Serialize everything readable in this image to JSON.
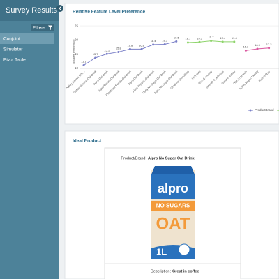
{
  "sidebar": {
    "title": "Survey Results",
    "filters": "Filters",
    "menu": [
      "Conjoint",
      "Simulator",
      "Pivot Table"
    ]
  },
  "chart_data": {
    "type": "line",
    "title": "Relative Feature Level Preference",
    "y_label": "Relative Preference",
    "categories": [
      "Oatley Barista Edit...",
      "Oatley Original Oat Drink",
      "Tesco Oat Drink",
      "Alpro Barista Oat Drink",
      "Plantbrew Barista Oat Drink",
      "Alpro Oat Drink",
      "Alpro Organic Oat Drink",
      "Oatly No Sugar Oat Drink",
      "Alpro No Sugar Oat Drink",
      "Great for Smoothies",
      "Irish oats",
      "Rich & creamy",
      "Smooth & delicious",
      "Great in coffee",
      "High in protein",
      "100% Vegan friendly",
      "Rich in fibre"
    ],
    "series": [
      {
        "name": "ProductBrand",
        "color": "#7b80c8",
        "values": [
          11.1,
          13.7,
          15.1,
          15.8,
          16.8,
          16.8,
          18.4,
          18.5,
          19.5,
          null,
          null,
          null,
          null,
          null,
          null,
          null,
          null
        ]
      },
      {
        "color": "#8fd46c",
        "values": [
          null,
          null,
          null,
          null,
          null,
          null,
          null,
          null,
          null,
          19.1,
          19.3,
          19.7,
          19.4,
          19.4,
          null,
          null,
          null
        ]
      },
      {
        "color": "#d9579f",
        "values": [
          null,
          null,
          null,
          null,
          null,
          null,
          null,
          null,
          null,
          null,
          null,
          null,
          null,
          null,
          16.3,
          16.9,
          17.2
        ]
      }
    ],
    "ylim": [
      10,
      26
    ],
    "yticks": [
      10,
      15,
      20,
      25
    ],
    "grid": true
  },
  "product": {
    "title": "Ideal Product",
    "brand_label": "Product/Brand:",
    "brand": "Alpro No Sugar Oat Drink",
    "package": {
      "logo": "alpro",
      "banner": "NO SUGARS",
      "name": "OAT",
      "volume": "1L"
    },
    "description_label": "Description:",
    "description": "Great in coffee"
  }
}
